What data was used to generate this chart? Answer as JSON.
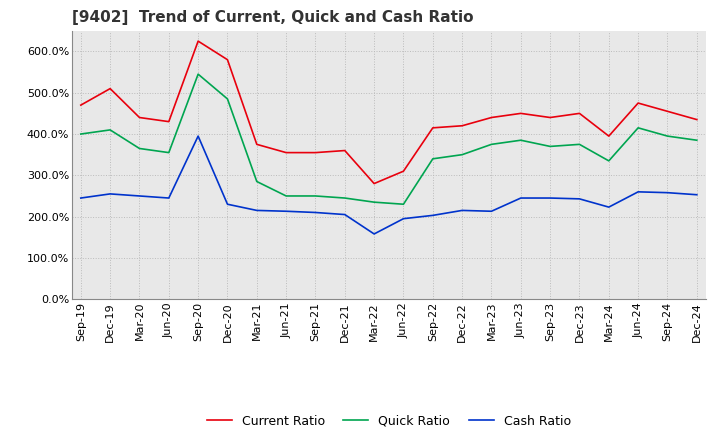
{
  "title": "[9402]  Trend of Current, Quick and Cash Ratio",
  "x_labels": [
    "Sep-19",
    "Dec-19",
    "Mar-20",
    "Jun-20",
    "Sep-20",
    "Dec-20",
    "Mar-21",
    "Jun-21",
    "Sep-21",
    "Dec-21",
    "Mar-22",
    "Jun-22",
    "Sep-22",
    "Dec-22",
    "Mar-23",
    "Jun-23",
    "Sep-23",
    "Dec-23",
    "Mar-24",
    "Jun-24",
    "Sep-24",
    "Dec-24"
  ],
  "current_ratio": [
    470,
    510,
    440,
    430,
    625,
    580,
    375,
    355,
    355,
    360,
    280,
    310,
    415,
    420,
    440,
    450,
    440,
    450,
    395,
    475,
    455,
    435
  ],
  "quick_ratio": [
    400,
    410,
    365,
    355,
    545,
    485,
    285,
    250,
    250,
    245,
    235,
    230,
    340,
    350,
    375,
    385,
    370,
    375,
    335,
    415,
    395,
    385
  ],
  "cash_ratio": [
    245,
    255,
    250,
    245,
    395,
    230,
    215,
    213,
    210,
    205,
    158,
    195,
    203,
    215,
    213,
    245,
    245,
    243,
    223,
    260,
    258,
    253
  ],
  "current_color": "#e8000d",
  "quick_color": "#00a550",
  "cash_color": "#0033cc",
  "ylim": [
    0,
    650
  ],
  "yticks": [
    0,
    100,
    200,
    300,
    400,
    500,
    600
  ],
  "ytick_labels": [
    "0.0%",
    "100.0%",
    "200.0%",
    "300.0%",
    "400.0%",
    "500.0%",
    "600.0%"
  ],
  "background_color": "#ffffff",
  "plot_bg_color": "#e8e8e8",
  "grid_color": "#bbbbbb",
  "title_fontsize": 11,
  "axis_fontsize": 8,
  "legend_fontsize": 9
}
